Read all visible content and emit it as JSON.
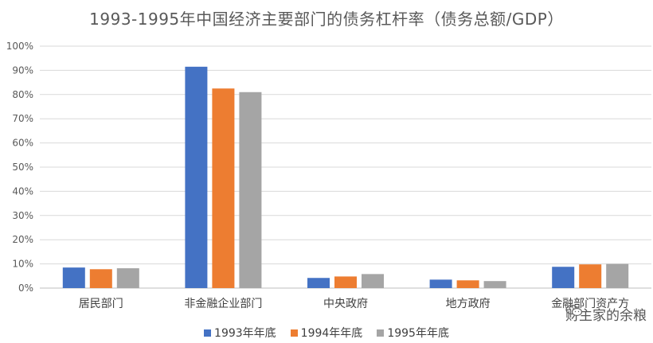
{
  "chart_data": {
    "type": "bar",
    "title": "1993-1995年中国经济主要部门的债务杠杆率（债务总额/GDP）",
    "categories": [
      "居民部门",
      "非金融企业部门",
      "中央政府",
      "地方政府",
      "金融部门资产方"
    ],
    "series": [
      {
        "name": "1993年年底",
        "color": "#4472C4",
        "values": [
          8.5,
          91.5,
          4.2,
          3.5,
          8.8
        ]
      },
      {
        "name": "1994年年底",
        "color": "#ED7D31",
        "values": [
          7.8,
          82.5,
          4.8,
          3.2,
          9.8
        ]
      },
      {
        "name": "1995年年底",
        "color": "#A5A5A5",
        "values": [
          8.2,
          81.0,
          5.8,
          2.9,
          10.0
        ]
      }
    ],
    "ylim": [
      0,
      100
    ],
    "yticks": [
      "0%",
      "10%",
      "20%",
      "30%",
      "40%",
      "50%",
      "60%",
      "70%",
      "80%",
      "90%",
      "100%"
    ],
    "grid": true,
    "legend": "bottom"
  },
  "watermark": {
    "text": "财主家的余粮",
    "icon": "wechat-icon"
  }
}
